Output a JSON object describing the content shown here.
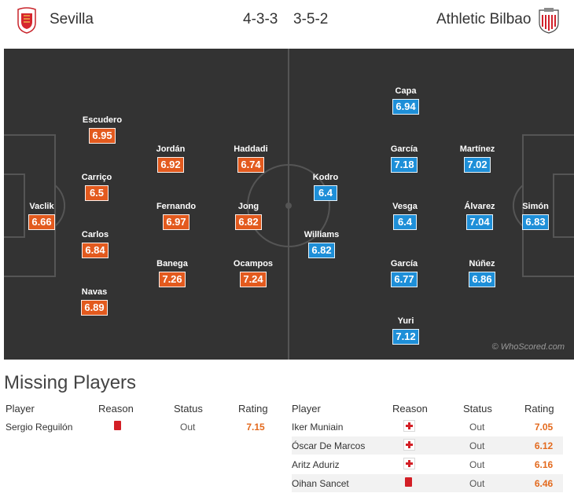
{
  "header": {
    "home_team": "Sevilla",
    "home_formation": "4-3-3",
    "away_formation": "3-5-2",
    "away_team": "Athletic Bilbao",
    "home_crest_icon": "sevilla-crest-icon",
    "away_crest_icon": "athletic-bilbao-crest-icon"
  },
  "colors": {
    "home": "#e35a1e",
    "away": "#1e8fd8",
    "pitch": "#333333"
  },
  "home_players": [
    {
      "name": "Vaclik",
      "rating": "6.66"
    },
    {
      "name": "Escudero",
      "rating": "6.95"
    },
    {
      "name": "Carriço",
      "rating": "6.5"
    },
    {
      "name": "Carlos",
      "rating": "6.84"
    },
    {
      "name": "Navas",
      "rating": "6.89"
    },
    {
      "name": "Jordán",
      "rating": "6.92"
    },
    {
      "name": "Fernando",
      "rating": "6.97"
    },
    {
      "name": "Banega",
      "rating": "7.26"
    },
    {
      "name": "Haddadi",
      "rating": "6.74"
    },
    {
      "name": "Jong",
      "rating": "6.82"
    },
    {
      "name": "Ocampos",
      "rating": "7.24"
    }
  ],
  "away_players": [
    {
      "name": "Kodro",
      "rating": "6.4"
    },
    {
      "name": "Williams",
      "rating": "6.82"
    },
    {
      "name": "Capa",
      "rating": "6.94"
    },
    {
      "name": "García",
      "rating": "7.18"
    },
    {
      "name": "Vesga",
      "rating": "6.4"
    },
    {
      "name": "García",
      "rating": "6.77"
    },
    {
      "name": "Yuri",
      "rating": "7.12"
    },
    {
      "name": "Martínez",
      "rating": "7.02"
    },
    {
      "name": "Álvarez",
      "rating": "7.04"
    },
    {
      "name": "Núñez",
      "rating": "6.86"
    },
    {
      "name": "Simón",
      "rating": "6.83"
    }
  ],
  "watermark": "© WhoScored.com",
  "missing": {
    "title": "Missing Players",
    "columns": [
      "Player",
      "Reason",
      "Status",
      "Rating"
    ],
    "home": [
      {
        "player": "Sergio Reguilón",
        "reason": "red-card-icon",
        "status": "Out",
        "rating": "7.15"
      }
    ],
    "away": [
      {
        "player": "Iker Muniain",
        "reason": "injury-icon",
        "status": "Out",
        "rating": "7.05"
      },
      {
        "player": "Óscar De Marcos",
        "reason": "injury-icon",
        "status": "Out",
        "rating": "6.12"
      },
      {
        "player": "Aritz Aduriz",
        "reason": "injury-icon",
        "status": "Out",
        "rating": "6.16"
      },
      {
        "player": "Oihan Sancet",
        "reason": "red-card-icon",
        "status": "Out",
        "rating": "6.46"
      }
    ]
  }
}
